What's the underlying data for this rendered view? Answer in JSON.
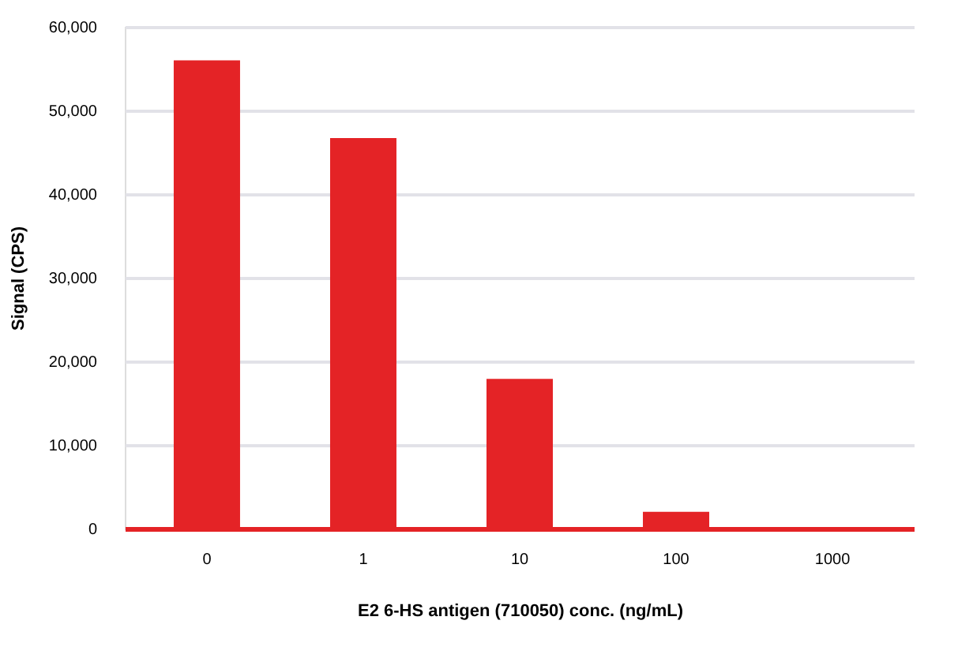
{
  "chart_data": {
    "type": "bar",
    "xlabel": "E2 6-HS antigen (710050) conc. (ng/mL)",
    "ylabel": "Signal (CPS)",
    "categories": [
      "0",
      "1",
      "10",
      "100",
      "1000"
    ],
    "values": [
      56000,
      46700,
      17900,
      2000,
      200
    ],
    "color": "#e42326",
    "ylim": [
      0,
      60000
    ],
    "yticks": [
      {
        "value": 0,
        "label": "0"
      },
      {
        "value": 10000,
        "label": "10,000"
      },
      {
        "value": 20000,
        "label": "20,000"
      },
      {
        "value": 30000,
        "label": "30,000"
      },
      {
        "value": 40000,
        "label": "40,000"
      },
      {
        "value": 50000,
        "label": "50,000"
      },
      {
        "value": 60000,
        "label": "60,000"
      }
    ],
    "grid": "y"
  }
}
